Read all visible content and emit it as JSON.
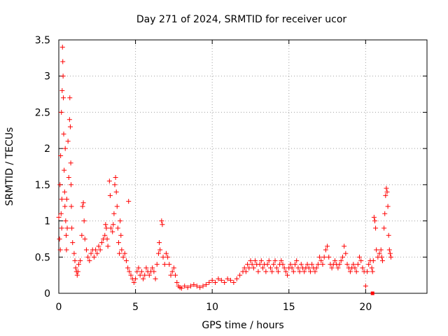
{
  "chart_data": {
    "type": "scatter",
    "title": "Day 271 of 2024, SRMTID for receiver ucor",
    "xlabel": "GPS time / hours",
    "ylabel": "SRMTID / TECUs",
    "xlim": [
      0,
      24
    ],
    "ylim": [
      0,
      3.5
    ],
    "xticks": [
      0,
      5,
      10,
      15,
      20
    ],
    "xtick_labels": [
      "0",
      "5",
      "10",
      "15",
      "20"
    ],
    "yticks": [
      0,
      0.5,
      1,
      1.5,
      2,
      2.5,
      3,
      3.5
    ],
    "ytick_labels": [
      "0",
      "0.5",
      "1",
      "1.5",
      "2",
      "2.5",
      "3",
      "3.5"
    ],
    "grid": true,
    "marker": "plus",
    "color": "#ff0000",
    "series": [
      {
        "name": "SRMTID",
        "points": [
          [
            0.0,
            1.05
          ],
          [
            0.05,
            0.75
          ],
          [
            0.08,
            1.5
          ],
          [
            0.1,
            0.6
          ],
          [
            0.12,
            1.9
          ],
          [
            0.15,
            1.1
          ],
          [
            0.17,
            2.5
          ],
          [
            0.19,
            0.9
          ],
          [
            0.2,
            1.3
          ],
          [
            0.22,
            2.8
          ],
          [
            0.24,
            3.4
          ],
          [
            0.26,
            3.2
          ],
          [
            0.28,
            3.0
          ],
          [
            0.3,
            2.7
          ],
          [
            0.32,
            2.2
          ],
          [
            0.35,
            1.7
          ],
          [
            0.38,
            1.4
          ],
          [
            0.4,
            1.2
          ],
          [
            0.42,
            2.0
          ],
          [
            0.45,
            1.0
          ],
          [
            0.48,
            0.8
          ],
          [
            0.5,
            0.6
          ],
          [
            0.52,
            1.3
          ],
          [
            0.55,
            0.9
          ],
          [
            0.6,
            2.1
          ],
          [
            0.65,
            1.6
          ],
          [
            0.7,
            2.4
          ],
          [
            0.72,
            2.7
          ],
          [
            0.75,
            2.3
          ],
          [
            0.78,
            1.8
          ],
          [
            0.8,
            1.5
          ],
          [
            0.82,
            1.2
          ],
          [
            0.85,
            0.9
          ],
          [
            0.9,
            0.7
          ],
          [
            1.0,
            0.55
          ],
          [
            1.05,
            0.45
          ],
          [
            1.1,
            0.35
          ],
          [
            1.15,
            0.3
          ],
          [
            1.2,
            0.25
          ],
          [
            1.25,
            0.3
          ],
          [
            1.3,
            0.4
          ],
          [
            1.4,
            0.45
          ],
          [
            1.5,
            0.8
          ],
          [
            1.55,
            1.2
          ],
          [
            1.6,
            1.25
          ],
          [
            1.65,
            1.0
          ],
          [
            1.7,
            0.75
          ],
          [
            1.8,
            0.6
          ],
          [
            1.9,
            0.5
          ],
          [
            2.0,
            0.45
          ],
          [
            2.1,
            0.55
          ],
          [
            2.2,
            0.6
          ],
          [
            2.3,
            0.5
          ],
          [
            2.4,
            0.6
          ],
          [
            2.5,
            0.55
          ],
          [
            2.6,
            0.65
          ],
          [
            2.7,
            0.6
          ],
          [
            2.8,
            0.7
          ],
          [
            2.9,
            0.75
          ],
          [
            3.0,
            0.8
          ],
          [
            3.05,
            0.95
          ],
          [
            3.1,
            0.9
          ],
          [
            3.15,
            0.75
          ],
          [
            3.2,
            0.65
          ],
          [
            3.3,
            1.55
          ],
          [
            3.35,
            1.35
          ],
          [
            3.4,
            0.9
          ],
          [
            3.5,
            0.85
          ],
          [
            3.55,
            0.95
          ],
          [
            3.6,
            1.1
          ],
          [
            3.65,
            1.5
          ],
          [
            3.7,
            1.6
          ],
          [
            3.75,
            1.4
          ],
          [
            3.8,
            1.2
          ],
          [
            3.85,
            0.9
          ],
          [
            3.9,
            0.7
          ],
          [
            3.95,
            0.55
          ],
          [
            4.0,
            1.0
          ],
          [
            4.05,
            0.8
          ],
          [
            4.1,
            0.6
          ],
          [
            4.2,
            0.5
          ],
          [
            4.3,
            0.55
          ],
          [
            4.4,
            0.45
          ],
          [
            4.5,
            0.35
          ],
          [
            4.55,
            1.27
          ],
          [
            4.6,
            0.3
          ],
          [
            4.7,
            0.25
          ],
          [
            4.8,
            0.2
          ],
          [
            4.9,
            0.15
          ],
          [
            5.0,
            0.2
          ],
          [
            5.1,
            0.3
          ],
          [
            5.2,
            0.35
          ],
          [
            5.3,
            0.25
          ],
          [
            5.4,
            0.3
          ],
          [
            5.5,
            0.2
          ],
          [
            5.6,
            0.25
          ],
          [
            5.7,
            0.35
          ],
          [
            5.8,
            0.3
          ],
          [
            5.9,
            0.25
          ],
          [
            6.0,
            0.3
          ],
          [
            6.1,
            0.35
          ],
          [
            6.2,
            0.3
          ],
          [
            6.3,
            0.2
          ],
          [
            6.4,
            0.4
          ],
          [
            6.5,
            0.55
          ],
          [
            6.55,
            0.7
          ],
          [
            6.6,
            0.6
          ],
          [
            6.7,
            1.0
          ],
          [
            6.75,
            0.95
          ],
          [
            6.8,
            0.5
          ],
          [
            6.9,
            0.4
          ],
          [
            7.0,
            0.55
          ],
          [
            7.1,
            0.5
          ],
          [
            7.2,
            0.4
          ],
          [
            7.3,
            0.25
          ],
          [
            7.4,
            0.3
          ],
          [
            7.5,
            0.35
          ],
          [
            7.6,
            0.25
          ],
          [
            7.7,
            0.15
          ],
          [
            7.8,
            0.1
          ],
          [
            7.9,
            0.08
          ],
          [
            8.0,
            0.07
          ],
          [
            8.2,
            0.1
          ],
          [
            8.4,
            0.08
          ],
          [
            8.6,
            0.1
          ],
          [
            8.8,
            0.12
          ],
          [
            9.0,
            0.1
          ],
          [
            9.2,
            0.08
          ],
          [
            9.4,
            0.1
          ],
          [
            9.6,
            0.12
          ],
          [
            9.8,
            0.15
          ],
          [
            10.0,
            0.18
          ],
          [
            10.2,
            0.15
          ],
          [
            10.4,
            0.2
          ],
          [
            10.6,
            0.18
          ],
          [
            10.8,
            0.15
          ],
          [
            11.0,
            0.2
          ],
          [
            11.2,
            0.18
          ],
          [
            11.4,
            0.15
          ],
          [
            11.6,
            0.2
          ],
          [
            11.8,
            0.25
          ],
          [
            12.0,
            0.3
          ],
          [
            12.1,
            0.35
          ],
          [
            12.2,
            0.3
          ],
          [
            12.3,
            0.4
          ],
          [
            12.4,
            0.35
          ],
          [
            12.5,
            0.45
          ],
          [
            12.6,
            0.4
          ],
          [
            12.7,
            0.35
          ],
          [
            12.8,
            0.45
          ],
          [
            12.9,
            0.4
          ],
          [
            13.0,
            0.3
          ],
          [
            13.1,
            0.4
          ],
          [
            13.2,
            0.45
          ],
          [
            13.3,
            0.35
          ],
          [
            13.4,
            0.4
          ],
          [
            13.5,
            0.3
          ],
          [
            13.6,
            0.4
          ],
          [
            13.7,
            0.45
          ],
          [
            13.8,
            0.35
          ],
          [
            13.9,
            0.3
          ],
          [
            14.0,
            0.4
          ],
          [
            14.1,
            0.45
          ],
          [
            14.2,
            0.35
          ],
          [
            14.3,
            0.3
          ],
          [
            14.4,
            0.4
          ],
          [
            14.5,
            0.45
          ],
          [
            14.6,
            0.4
          ],
          [
            14.7,
            0.35
          ],
          [
            14.8,
            0.3
          ],
          [
            14.9,
            0.25
          ],
          [
            15.0,
            0.35
          ],
          [
            15.1,
            0.4
          ],
          [
            15.2,
            0.35
          ],
          [
            15.3,
            0.3
          ],
          [
            15.4,
            0.4
          ],
          [
            15.5,
            0.45
          ],
          [
            15.6,
            0.35
          ],
          [
            15.7,
            0.3
          ],
          [
            15.8,
            0.4
          ],
          [
            15.9,
            0.35
          ],
          [
            16.0,
            0.3
          ],
          [
            16.1,
            0.35
          ],
          [
            16.2,
            0.4
          ],
          [
            16.3,
            0.35
          ],
          [
            16.4,
            0.3
          ],
          [
            16.5,
            0.4
          ],
          [
            16.6,
            0.35
          ],
          [
            16.7,
            0.3
          ],
          [
            16.8,
            0.35
          ],
          [
            16.9,
            0.4
          ],
          [
            17.0,
            0.5
          ],
          [
            17.1,
            0.45
          ],
          [
            17.2,
            0.4
          ],
          [
            17.3,
            0.5
          ],
          [
            17.4,
            0.6
          ],
          [
            17.5,
            0.65
          ],
          [
            17.6,
            0.5
          ],
          [
            17.7,
            0.4
          ],
          [
            17.8,
            0.35
          ],
          [
            17.9,
            0.4
          ],
          [
            18.0,
            0.45
          ],
          [
            18.1,
            0.4
          ],
          [
            18.2,
            0.35
          ],
          [
            18.3,
            0.4
          ],
          [
            18.4,
            0.45
          ],
          [
            18.5,
            0.5
          ],
          [
            18.6,
            0.65
          ],
          [
            18.7,
            0.55
          ],
          [
            18.8,
            0.4
          ],
          [
            18.9,
            0.35
          ],
          [
            19.0,
            0.3
          ],
          [
            19.1,
            0.35
          ],
          [
            19.2,
            0.4
          ],
          [
            19.3,
            0.35
          ],
          [
            19.4,
            0.3
          ],
          [
            19.5,
            0.4
          ],
          [
            19.6,
            0.5
          ],
          [
            19.7,
            0.45
          ],
          [
            19.8,
            0.35
          ],
          [
            19.9,
            0.3
          ],
          [
            20.0,
            0.1
          ],
          [
            20.1,
            0.3
          ],
          [
            20.2,
            0.4
          ],
          [
            20.3,
            0.45
          ],
          [
            20.4,
            0.35
          ],
          [
            20.45,
            0.3
          ],
          [
            20.5,
            0.45
          ],
          [
            20.55,
            1.05
          ],
          [
            20.6,
            1.0
          ],
          [
            20.65,
            0.9
          ],
          [
            20.7,
            0.6
          ],
          [
            20.8,
            0.5
          ],
          [
            20.9,
            0.55
          ],
          [
            21.0,
            0.6
          ],
          [
            21.05,
            0.5
          ],
          [
            21.1,
            0.45
          ],
          [
            21.2,
            0.9
          ],
          [
            21.25,
            1.1
          ],
          [
            21.3,
            1.35
          ],
          [
            21.35,
            1.45
          ],
          [
            21.4,
            1.4
          ],
          [
            21.45,
            1.2
          ],
          [
            21.5,
            0.8
          ],
          [
            21.55,
            0.6
          ],
          [
            21.6,
            0.55
          ],
          [
            21.65,
            0.5
          ]
        ]
      },
      {
        "name": "marker",
        "marker": "square",
        "points": [
          [
            20.45,
            0.0
          ]
        ]
      }
    ]
  }
}
